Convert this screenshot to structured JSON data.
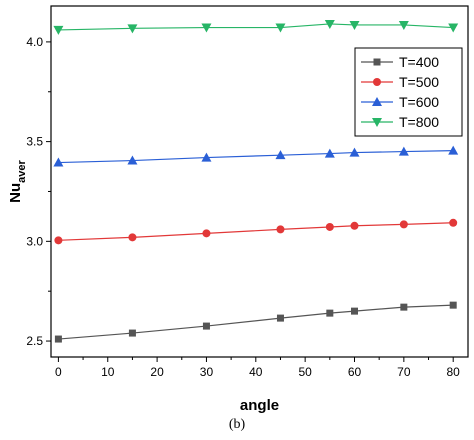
{
  "chart_data": {
    "type": "line",
    "xlabel": "angle",
    "ylabel_base": "Nu",
    "ylabel_sub": "aver",
    "xlim": [
      -1.5,
      83
    ],
    "ylim": [
      2.42,
      4.18
    ],
    "xticks": [
      0,
      10,
      20,
      30,
      40,
      50,
      60,
      70,
      80
    ],
    "yticks": [
      2.5,
      3.0,
      3.5,
      4.0
    ],
    "ytick_labels": [
      "2.5",
      "3.0",
      "3.5",
      "4.0"
    ],
    "grid": false,
    "legend_position": "top-right",
    "x": [
      0,
      15,
      30,
      45,
      55,
      60,
      70,
      80
    ],
    "series": [
      {
        "name": "T=400",
        "color": "#555555",
        "marker": "square",
        "values": [
          2.51,
          2.54,
          2.575,
          2.615,
          2.64,
          2.65,
          2.67,
          2.68
        ]
      },
      {
        "name": "T=500",
        "color": "#e23838",
        "marker": "circle",
        "values": [
          3.005,
          3.02,
          3.04,
          3.06,
          3.072,
          3.078,
          3.085,
          3.093
        ]
      },
      {
        "name": "T=600",
        "color": "#2a5fd6",
        "marker": "triangle-up",
        "values": [
          3.395,
          3.405,
          3.42,
          3.432,
          3.44,
          3.445,
          3.45,
          3.455
        ]
      },
      {
        "name": "T=800",
        "color": "#27b566",
        "marker": "triangle-down",
        "values": [
          4.06,
          4.068,
          4.072,
          4.072,
          4.09,
          4.085,
          4.085,
          4.072
        ]
      }
    ]
  },
  "caption": "(b)"
}
